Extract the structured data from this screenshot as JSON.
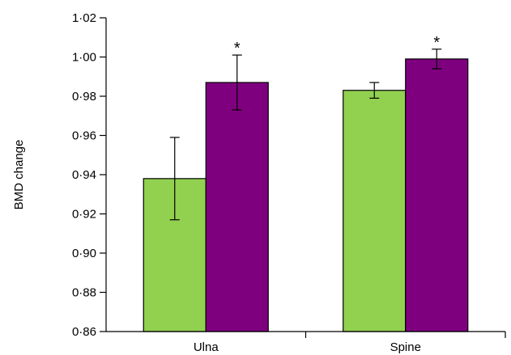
{
  "chart_data": {
    "type": "bar",
    "title": "",
    "xlabel": "",
    "ylabel": "BMD change",
    "ylim": [
      0.86,
      1.02
    ],
    "yticks": [
      "0·86",
      "0·88",
      "0·90",
      "0·92",
      "0·94",
      "0·96",
      "0·98",
      "1·00",
      "1·02"
    ],
    "ytick_values": [
      0.86,
      0.88,
      0.9,
      0.92,
      0.94,
      0.96,
      0.98,
      1.0,
      1.02
    ],
    "categories": [
      "Ulna",
      "Spine"
    ],
    "grid": false,
    "series": [
      {
        "color": "#92d050",
        "values": [
          0.938,
          0.983
        ],
        "error_low": [
          0.917,
          0.979
        ],
        "error_high": [
          0.959,
          0.987
        ]
      },
      {
        "color": "#7f007f",
        "values": [
          0.987,
          0.999
        ],
        "error_low": [
          0.973,
          0.994
        ],
        "error_high": [
          1.001,
          1.004
        ]
      }
    ],
    "annotations": [
      {
        "category": "Ulna",
        "series_index": 1,
        "text": "*"
      },
      {
        "category": "Spine",
        "series_index": 1,
        "text": "*"
      }
    ]
  }
}
